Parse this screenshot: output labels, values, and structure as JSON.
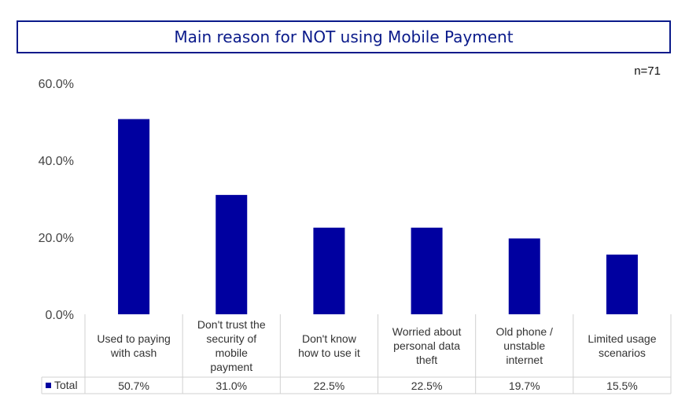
{
  "chart_data": {
    "type": "bar",
    "title": "Main reason for NOT using Mobile Payment",
    "annotation": "n=71",
    "categories": [
      [
        "Used to paying",
        "with cash"
      ],
      [
        "Don't trust the",
        "security of",
        "mobile",
        "payment"
      ],
      [
        "Don't know",
        "how to use it"
      ],
      [
        "Worried about",
        "personal data",
        "theft"
      ],
      [
        "Old phone /",
        "unstable",
        "internet"
      ],
      [
        "Limited usage",
        "scenarios"
      ]
    ],
    "series": [
      {
        "name": "Total",
        "values": [
          50.7,
          31.0,
          22.5,
          22.5,
          19.7,
          15.5
        ],
        "labels": [
          "50.7%",
          "31.0%",
          "22.5%",
          "22.5%",
          "19.7%",
          "15.5%"
        ]
      }
    ],
    "yticks": [
      "0.0%",
      "20.0%",
      "40.0%",
      "60.0%"
    ],
    "ylim": [
      0,
      60
    ],
    "colors": {
      "bar": "#0000a0",
      "title": "#0a1a8a",
      "grid": "#d0d0d0"
    },
    "legend": "data-table"
  }
}
